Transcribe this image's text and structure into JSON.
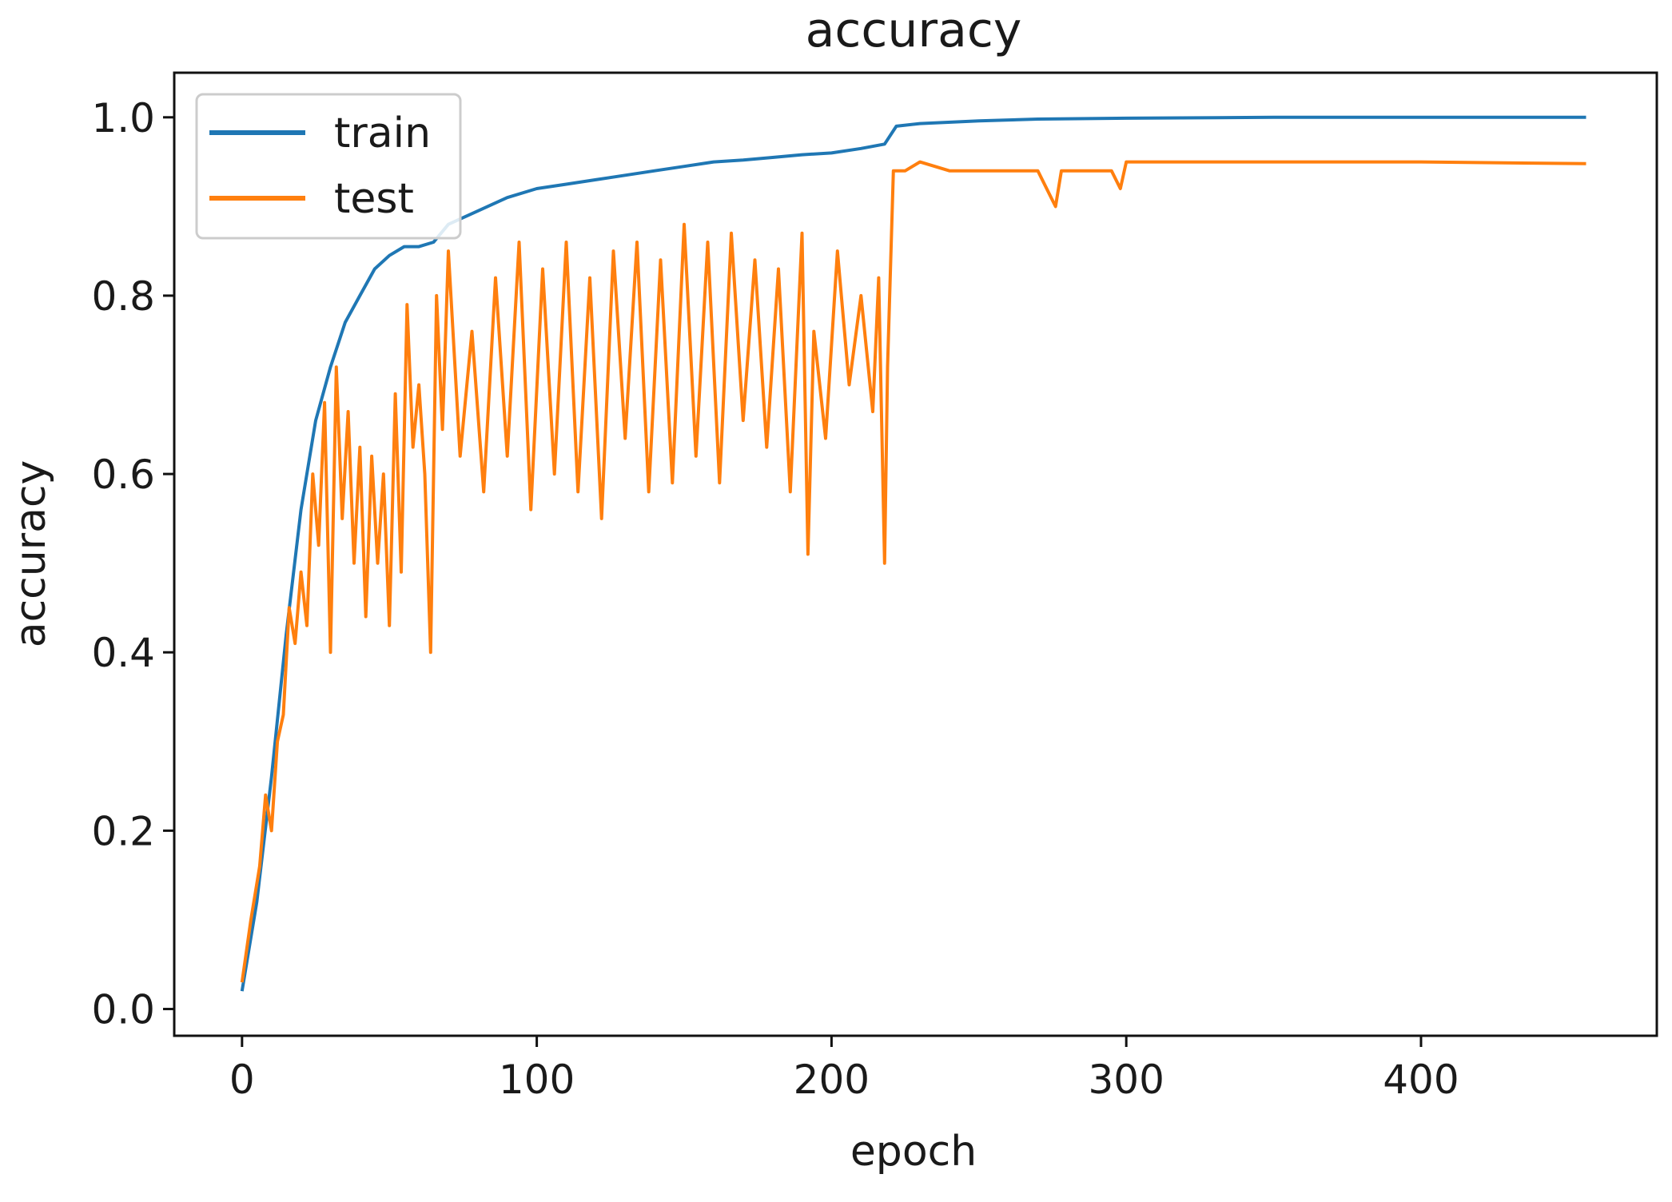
{
  "chart_data": {
    "type": "line",
    "title": "accuracy",
    "xlabel": "epoch",
    "ylabel": "accuracy",
    "xlim": [
      -23,
      480
    ],
    "ylim": [
      -0.03,
      1.05
    ],
    "xticks": [
      0,
      100,
      200,
      300,
      400
    ],
    "xtick_labels": [
      "0",
      "100",
      "200",
      "300",
      "400"
    ],
    "yticks": [
      0.0,
      0.2,
      0.4,
      0.6,
      0.8,
      1.0
    ],
    "ytick_labels": [
      "0.0",
      "0.2",
      "0.4",
      "0.6",
      "0.8",
      "1.0"
    ],
    "grid": false,
    "legend": "upper-left",
    "series": [
      {
        "name": "train",
        "color": "#1f77b4",
        "x": [
          0,
          5,
          10,
          15,
          20,
          25,
          30,
          35,
          40,
          45,
          50,
          55,
          60,
          65,
          70,
          80,
          90,
          100,
          110,
          120,
          130,
          140,
          150,
          160,
          170,
          180,
          190,
          200,
          210,
          218,
          222,
          230,
          250,
          270,
          300,
          350,
          400,
          456
        ],
        "y": [
          0.02,
          0.12,
          0.26,
          0.42,
          0.56,
          0.66,
          0.72,
          0.77,
          0.8,
          0.83,
          0.845,
          0.855,
          0.855,
          0.86,
          0.88,
          0.895,
          0.91,
          0.92,
          0.925,
          0.93,
          0.935,
          0.94,
          0.945,
          0.95,
          0.952,
          0.955,
          0.958,
          0.96,
          0.965,
          0.97,
          0.99,
          0.993,
          0.996,
          0.998,
          0.999,
          1.0,
          1.0,
          1.0
        ]
      },
      {
        "name": "test",
        "color": "#ff7f0e",
        "x": [
          0,
          3,
          6,
          8,
          10,
          12,
          14,
          16,
          18,
          20,
          22,
          24,
          26,
          28,
          30,
          32,
          34,
          36,
          38,
          40,
          42,
          44,
          46,
          48,
          50,
          52,
          54,
          56,
          58,
          60,
          62,
          64,
          66,
          68,
          70,
          74,
          78,
          82,
          86,
          90,
          94,
          98,
          102,
          106,
          110,
          114,
          118,
          122,
          126,
          130,
          134,
          138,
          142,
          146,
          150,
          154,
          158,
          162,
          166,
          170,
          174,
          178,
          182,
          186,
          190,
          192,
          194,
          198,
          202,
          206,
          210,
          214,
          216,
          218,
          219,
          221,
          225,
          230,
          240,
          250,
          260,
          270,
          276,
          278,
          285,
          295,
          298,
          300,
          320,
          350,
          400,
          456
        ],
        "y": [
          0.03,
          0.1,
          0.16,
          0.24,
          0.2,
          0.3,
          0.33,
          0.45,
          0.41,
          0.49,
          0.43,
          0.6,
          0.52,
          0.68,
          0.4,
          0.72,
          0.55,
          0.67,
          0.5,
          0.63,
          0.44,
          0.62,
          0.5,
          0.6,
          0.43,
          0.69,
          0.49,
          0.79,
          0.63,
          0.7,
          0.6,
          0.4,
          0.8,
          0.65,
          0.85,
          0.62,
          0.76,
          0.58,
          0.82,
          0.62,
          0.86,
          0.56,
          0.83,
          0.6,
          0.86,
          0.58,
          0.82,
          0.55,
          0.85,
          0.64,
          0.86,
          0.58,
          0.84,
          0.59,
          0.88,
          0.62,
          0.86,
          0.59,
          0.87,
          0.66,
          0.84,
          0.63,
          0.83,
          0.58,
          0.87,
          0.51,
          0.76,
          0.64,
          0.85,
          0.7,
          0.8,
          0.67,
          0.82,
          0.5,
          0.72,
          0.94,
          0.94,
          0.95,
          0.94,
          0.94,
          0.94,
          0.94,
          0.9,
          0.94,
          0.94,
          0.94,
          0.92,
          0.95,
          0.95,
          0.95,
          0.95,
          0.948
        ]
      }
    ]
  }
}
